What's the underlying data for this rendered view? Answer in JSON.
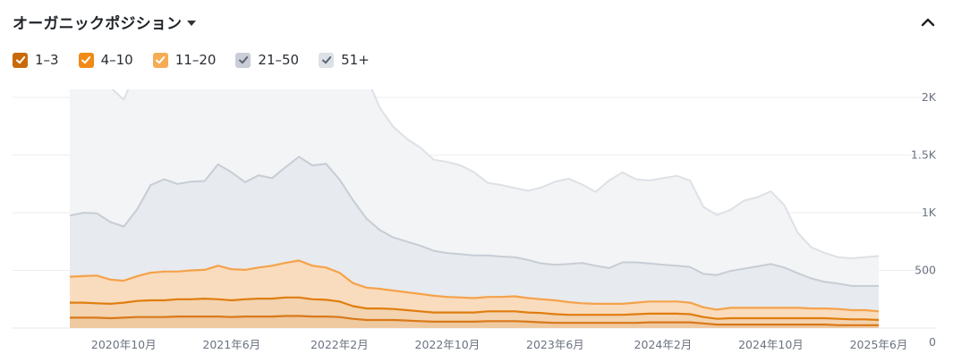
{
  "header": {
    "title": "オーガニックポジション"
  },
  "legend": [
    {
      "label": "1–3",
      "color": "#c86a0b",
      "checked": true
    },
    {
      "label": "4–10",
      "color": "#f18a16",
      "checked": true
    },
    {
      "label": "11–20",
      "color": "#f5ac55",
      "checked": true
    },
    {
      "label": "21–50",
      "color": "#c9ced6",
      "checked": true
    },
    {
      "label": "51+",
      "color": "#dde1e6",
      "checked": true
    }
  ],
  "chart_data": {
    "type": "area",
    "stacked": true,
    "x": [
      "2020-06",
      "2020-07",
      "2020-08",
      "2020-09",
      "2020-10",
      "2020-11",
      "2020-12",
      "2021-01",
      "2021-02",
      "2021-03",
      "2021-04",
      "2021-05",
      "2021-06",
      "2021-07",
      "2021-08",
      "2021-09",
      "2021-10",
      "2021-11",
      "2021-12",
      "2022-01",
      "2022-02",
      "2022-03",
      "2022-04",
      "2022-05",
      "2022-06",
      "2022-07",
      "2022-08",
      "2022-09",
      "2022-10",
      "2022-11",
      "2022-12",
      "2023-01",
      "2023-02",
      "2023-03",
      "2023-04",
      "2023-05",
      "2023-06",
      "2023-07",
      "2023-08",
      "2023-09",
      "2023-10",
      "2023-11",
      "2023-12",
      "2024-01",
      "2024-02",
      "2024-03",
      "2024-04",
      "2024-05",
      "2024-06",
      "2024-07",
      "2024-08",
      "2024-09",
      "2024-10",
      "2024-11",
      "2024-12",
      "2025-01",
      "2025-02",
      "2025-03",
      "2025-04",
      "2025-05",
      "2025-06"
    ],
    "x_tick_labels": [
      "2020年10月",
      "2021年6月",
      "2022年2月",
      "2022年10月",
      "2023年6月",
      "2024年2月",
      "2024年10月",
      "2025年6月"
    ],
    "x_tick_dates": [
      "2020-10",
      "2021-06",
      "2022-02",
      "2022-10",
      "2023-06",
      "2024-02",
      "2024-10",
      "2025-06"
    ],
    "y_ticks": [
      0,
      500,
      1000,
      1500,
      2000
    ],
    "y_tick_labels": [
      "0",
      "500",
      "1K",
      "1.5K",
      "2K"
    ],
    "ylim": [
      0,
      2000
    ],
    "grid": true,
    "series": [
      {
        "name": "1–3",
        "color": "#d9791a",
        "fill": "#efc9a0",
        "values": [
          90,
          90,
          90,
          85,
          90,
          95,
          95,
          95,
          100,
          100,
          100,
          100,
          95,
          100,
          100,
          100,
          105,
          105,
          100,
          100,
          95,
          80,
          70,
          70,
          70,
          65,
          60,
          55,
          55,
          55,
          55,
          60,
          60,
          60,
          55,
          50,
          45,
          45,
          45,
          45,
          45,
          45,
          45,
          50,
          50,
          50,
          50,
          40,
          30,
          30,
          30,
          30,
          30,
          30,
          30,
          30,
          30,
          25,
          25,
          25,
          25
        ]
      },
      {
        "name": "4–10",
        "color": "#e07d0e",
        "fill": "#f3d3b0",
        "values": [
          130,
          130,
          125,
          125,
          130,
          140,
          145,
          145,
          150,
          150,
          155,
          150,
          145,
          150,
          155,
          155,
          160,
          160,
          150,
          145,
          135,
          110,
          100,
          100,
          95,
          90,
          85,
          80,
          80,
          80,
          80,
          85,
          85,
          85,
          80,
          80,
          75,
          70,
          70,
          70,
          70,
          70,
          75,
          75,
          75,
          75,
          70,
          55,
          50,
          55,
          55,
          55,
          55,
          55,
          55,
          55,
          55,
          55,
          50,
          50,
          45
        ]
      },
      {
        "name": "11–20",
        "color": "#f5a24a",
        "fill": "#f9dcbd",
        "values": [
          225,
          230,
          240,
          210,
          190,
          215,
          240,
          250,
          240,
          250,
          250,
          290,
          270,
          255,
          270,
          285,
          300,
          320,
          290,
          280,
          250,
          200,
          180,
          170,
          160,
          155,
          150,
          145,
          135,
          130,
          125,
          125,
          125,
          130,
          125,
          120,
          120,
          110,
          100,
          95,
          95,
          95,
          100,
          105,
          105,
          105,
          100,
          85,
          80,
          90,
          90,
          90,
          90,
          90,
          90,
          85,
          85,
          85,
          80,
          80,
          75
        ]
      },
      {
        "name": "21–50",
        "color": "#c7cdd5",
        "fill": "#e7eaee",
        "values": [
          530,
          550,
          540,
          500,
          470,
          580,
          760,
          800,
          760,
          770,
          770,
          880,
          840,
          760,
          800,
          760,
          830,
          900,
          870,
          900,
          810,
          720,
          600,
          510,
          460,
          440,
          420,
          390,
          380,
          375,
          370,
          360,
          350,
          340,
          330,
          310,
          310,
          330,
          350,
          330,
          310,
          360,
          350,
          330,
          320,
          310,
          310,
          290,
          300,
          320,
          340,
          360,
          380,
          350,
          300,
          260,
          230,
          220,
          210,
          210,
          220
        ]
      },
      {
        "name": "51+",
        "color": "#dde1e6",
        "fill": "#f3f4f6",
        "values": [
          1120,
          1140,
          1140,
          1170,
          1100,
          1230,
          1480,
          1740,
          1540,
          1640,
          1610,
          1980,
          1800,
          1420,
          1610,
          1420,
          1520,
          1710,
          1760,
          1840,
          1680,
          1470,
          1230,
          1060,
          960,
          890,
          850,
          790,
          790,
          770,
          720,
          630,
          620,
          600,
          600,
          660,
          720,
          740,
          680,
          640,
          760,
          780,
          720,
          720,
          750,
          780,
          750,
          580,
          520,
          530,
          590,
          600,
          630,
          540,
          350,
          270,
          250,
          230,
          240,
          250,
          260
        ]
      }
    ]
  }
}
